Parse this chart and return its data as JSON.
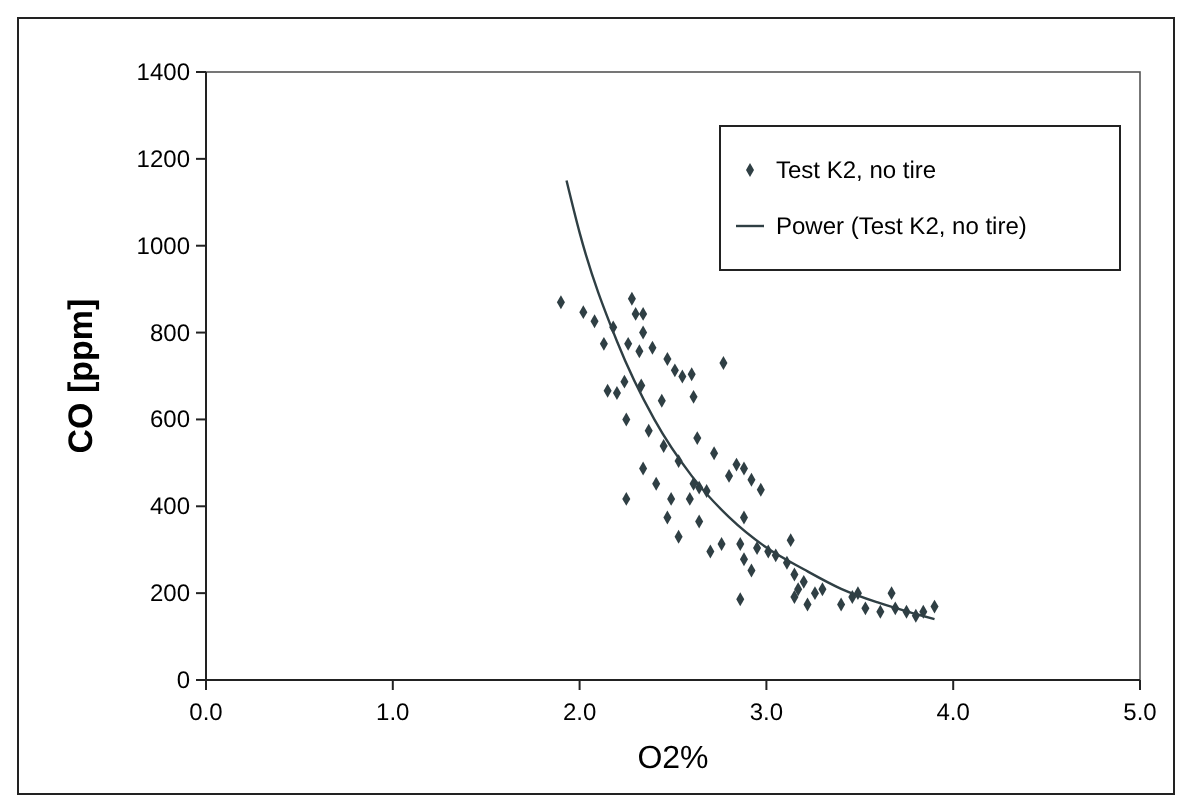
{
  "chart_data": {
    "type": "scatter",
    "xlabel": "O2%",
    "ylabel": "CO [ppm]",
    "xlim": [
      0,
      5
    ],
    "xticks": [
      {
        "value": 0,
        "label": "0.0"
      },
      {
        "value": 1,
        "label": "1.0"
      },
      {
        "value": 2,
        "label": "2.0"
      },
      {
        "value": 3,
        "label": "3.0"
      },
      {
        "value": 4,
        "label": "4.0"
      },
      {
        "value": 5,
        "label": "5.0"
      }
    ],
    "ylim": [
      0,
      1400
    ],
    "yticks": [
      0,
      200,
      400,
      600,
      800,
      1000,
      1200,
      1400
    ],
    "grid": false,
    "legend": "top right",
    "series": [
      {
        "name": "Test K2, no tire",
        "marker": "diamond",
        "color": "#2f3f44",
        "x": [
          1.9,
          2.02,
          2.08,
          2.13,
          2.18,
          2.15,
          2.2,
          2.24,
          2.25,
          2.25,
          2.28,
          2.3,
          2.34,
          2.26,
          2.32,
          2.34,
          2.39,
          2.33,
          2.34,
          2.37,
          2.41,
          2.44,
          2.45,
          2.47,
          2.51,
          2.55,
          2.6,
          2.61,
          2.63,
          2.53,
          2.49,
          2.47,
          2.53,
          2.59,
          2.61,
          2.64,
          2.68,
          2.64,
          2.7,
          2.72,
          2.77,
          2.76,
          2.8,
          2.84,
          2.88,
          2.92,
          2.97,
          2.88,
          2.86,
          2.88,
          2.86,
          2.92,
          2.95,
          3.01,
          3.05,
          3.11,
          3.13,
          3.15,
          3.17,
          3.2,
          3.22,
          3.15,
          3.26,
          3.3,
          3.4,
          3.46,
          3.49,
          3.53,
          3.61,
          3.67,
          3.69,
          3.75,
          3.84,
          3.9,
          3.8
        ],
        "values": [
          870,
          847,
          826,
          774,
          812,
          666,
          661,
          687,
          600,
          417,
          878,
          843,
          843,
          774,
          757,
          800,
          765,
          678,
          487,
          574,
          452,
          643,
          539,
          739,
          713,
          699,
          704,
          652,
          557,
          504,
          417,
          374,
          330,
          417,
          452,
          443,
          435,
          365,
          296,
          522,
          730,
          313,
          470,
          496,
          487,
          461,
          438,
          374,
          313,
          278,
          186,
          252,
          304,
          296,
          287,
          270,
          322,
          243,
          209,
          226,
          174,
          191,
          200,
          209,
          174,
          191,
          200,
          165,
          157,
          200,
          165,
          157,
          157,
          169,
          148
        ]
      },
      {
        "name": "Power (Test K2, no tire)",
        "type": "line",
        "marker": "none",
        "line_style": "solid",
        "color": "#2f3f44",
        "x": [
          1.93,
          2.0,
          2.2,
          2.4,
          2.6,
          2.8,
          3.0,
          3.2,
          3.4,
          3.6,
          3.8,
          3.9
        ],
        "values": [
          1150,
          1030,
          780,
          600,
          470,
          375,
          305,
          255,
          210,
          178,
          152,
          140
        ]
      }
    ]
  }
}
